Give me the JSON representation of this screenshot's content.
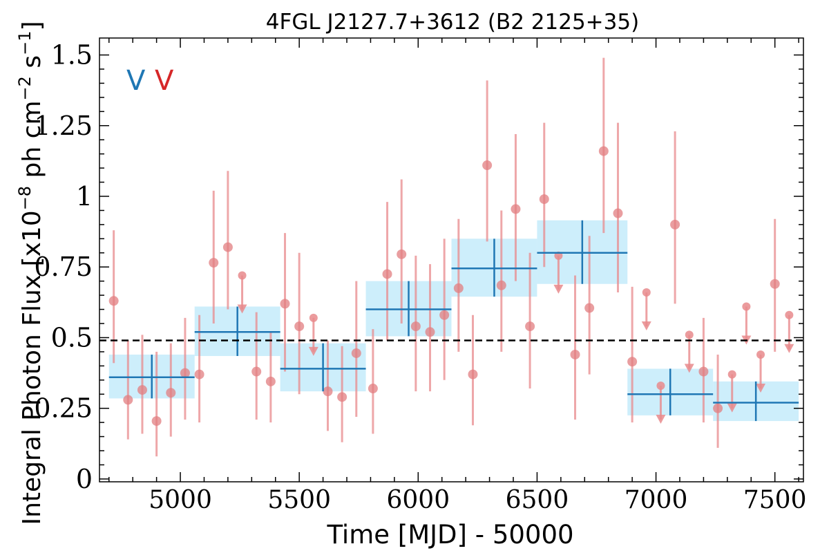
{
  "chart_data": {
    "type": "scatter",
    "title": "4FGL J2127.7+3612 (B2 2125+35)",
    "xlabel": "Time [MJD] - 50000",
    "ylabel": "Integral Photon Flux [x10$^{-8}$ ph cm$^{-2}$ s$^{-1}$]",
    "ylabel_parts": {
      "pre": "Integral Photon Flux [x10",
      "exp1": "−8",
      "mid": " ph cm",
      "exp2": "−2",
      "post1": " s",
      "exp3": "−1",
      "post2": "]"
    },
    "xlim": [
      4660,
      7620
    ],
    "ylim": [
      -0.01,
      1.56
    ],
    "xticks": [
      5000,
      5500,
      6000,
      6500,
      7000,
      7500
    ],
    "xtick_labels": [
      "5000",
      "5500",
      "6000",
      "6500",
      "7000",
      "7500"
    ],
    "yticks": [
      0,
      0.25,
      0.5,
      0.75,
      1,
      1.25,
      1.5
    ],
    "ytick_labels": [
      "0",
      "0.25",
      "0.5",
      "0.75",
      "1",
      "1.25",
      "1.5"
    ],
    "legend_labels": [
      {
        "text": "V",
        "color": "#1f77b4"
      },
      {
        "text": "V",
        "color": "#d62728"
      }
    ],
    "mean_flux": 0.49,
    "colors": {
      "short_points": "#e8898c",
      "long_bins": "#1f77b4",
      "long_band": "#cdeefb"
    },
    "series": [
      {
        "name": "",
        "type": "points_with_errorbars",
        "points": [
          {
            "x": 4720,
            "y": 0.63,
            "lo": 0.41,
            "hi": 0.88
          },
          {
            "x": 4780,
            "y": 0.28,
            "lo": 0.14,
            "hi": 0.49
          },
          {
            "x": 4840,
            "y": 0.315,
            "lo": 0.16,
            "hi": 0.51
          },
          {
            "x": 4900,
            "y": 0.205,
            "lo": 0.08,
            "hi": 0.45
          },
          {
            "x": 4960,
            "y": 0.305,
            "lo": 0.15,
            "hi": 0.48
          },
          {
            "x": 5020,
            "y": 0.375,
            "lo": 0.21,
            "hi": 0.57
          },
          {
            "x": 5080,
            "y": 0.37,
            "lo": 0.2,
            "hi": 0.58
          },
          {
            "x": 5140,
            "y": 0.765,
            "lo": 0.55,
            "hi": 1.02
          },
          {
            "x": 5200,
            "y": 0.82,
            "lo": 0.6,
            "hi": 1.09
          },
          {
            "x": 5320,
            "y": 0.38,
            "lo": 0.21,
            "hi": 0.59
          },
          {
            "x": 5380,
            "y": 0.345,
            "lo": 0.2,
            "hi": 0.52
          },
          {
            "x": 5440,
            "y": 0.62,
            "lo": 0.38,
            "hi": 0.87
          },
          {
            "x": 5500,
            "y": 0.54,
            "lo": 0.3,
            "hi": 0.8
          },
          {
            "x": 5620,
            "y": 0.31,
            "lo": 0.17,
            "hi": 0.49
          },
          {
            "x": 5680,
            "y": 0.29,
            "lo": 0.13,
            "hi": 0.47
          },
          {
            "x": 5740,
            "y": 0.445,
            "lo": 0.22,
            "hi": 0.7
          },
          {
            "x": 5810,
            "y": 0.32,
            "lo": 0.16,
            "hi": 0.53
          },
          {
            "x": 5870,
            "y": 0.725,
            "lo": 0.49,
            "hi": 0.98
          },
          {
            "x": 5930,
            "y": 0.795,
            "lo": 0.55,
            "hi": 1.06
          },
          {
            "x": 5990,
            "y": 0.54,
            "lo": 0.31,
            "hi": 0.79
          },
          {
            "x": 6050,
            "y": 0.52,
            "lo": 0.31,
            "hi": 0.76
          },
          {
            "x": 6110,
            "y": 0.58,
            "lo": 0.35,
            "hi": 0.85
          },
          {
            "x": 6170,
            "y": 0.675,
            "lo": 0.45,
            "hi": 0.92
          },
          {
            "x": 6230,
            "y": 0.37,
            "lo": 0.19,
            "hi": 0.58
          },
          {
            "x": 6290,
            "y": 1.11,
            "lo": 0.84,
            "hi": 1.41
          },
          {
            "x": 6350,
            "y": 0.685,
            "lo": 0.45,
            "hi": 0.95
          },
          {
            "x": 6410,
            "y": 0.955,
            "lo": 0.7,
            "hi": 1.22
          },
          {
            "x": 6470,
            "y": 0.54,
            "lo": 0.32,
            "hi": 0.8
          },
          {
            "x": 6530,
            "y": 0.99,
            "lo": 0.75,
            "hi": 1.26
          },
          {
            "x": 6660,
            "y": 0.44,
            "lo": 0.21,
            "hi": 0.72
          },
          {
            "x": 6720,
            "y": 0.605,
            "lo": 0.37,
            "hi": 0.86
          },
          {
            "x": 6780,
            "y": 1.16,
            "lo": 0.87,
            "hi": 1.49
          },
          {
            "x": 6840,
            "y": 0.94,
            "lo": 0.66,
            "hi": 1.26
          },
          {
            "x": 6900,
            "y": 0.415,
            "lo": 0.2,
            "hi": 0.68
          },
          {
            "x": 7080,
            "y": 0.9,
            "lo": 0.62,
            "hi": 1.23
          },
          {
            "x": 7200,
            "y": 0.38,
            "lo": 0.2,
            "hi": 0.57
          },
          {
            "x": 7260,
            "y": 0.25,
            "lo": 0.11,
            "hi": 0.44
          },
          {
            "x": 7500,
            "y": 0.69,
            "lo": 0.45,
            "hi": 0.92
          }
        ]
      },
      {
        "name": "",
        "type": "upper_limits",
        "points": [
          {
            "x": 5260,
            "y": 0.72
          },
          {
            "x": 5560,
            "y": 0.57
          },
          {
            "x": 6590,
            "y": 0.79
          },
          {
            "x": 6960,
            "y": 0.66
          },
          {
            "x": 7020,
            "y": 0.33
          },
          {
            "x": 7140,
            "y": 0.51
          },
          {
            "x": 7320,
            "y": 0.37
          },
          {
            "x": 7380,
            "y": 0.61
          },
          {
            "x": 7440,
            "y": 0.44
          },
          {
            "x": 7560,
            "y": 0.58
          }
        ]
      },
      {
        "name": "",
        "type": "binned",
        "bins": [
          {
            "x0": 4700,
            "x1": 5060,
            "xc": 4880,
            "y": 0.36,
            "lo": 0.285,
            "hi": 0.44
          },
          {
            "x0": 5060,
            "x1": 5420,
            "xc": 5240,
            "y": 0.52,
            "lo": 0.435,
            "hi": 0.61
          },
          {
            "x0": 5420,
            "x1": 5780,
            "xc": 5600,
            "y": 0.39,
            "lo": 0.31,
            "hi": 0.48
          },
          {
            "x0": 5780,
            "x1": 6140,
            "xc": 5960,
            "y": 0.6,
            "lo": 0.505,
            "hi": 0.7
          },
          {
            "x0": 6140,
            "x1": 6500,
            "xc": 6320,
            "y": 0.745,
            "lo": 0.645,
            "hi": 0.85
          },
          {
            "x0": 6500,
            "x1": 6880,
            "xc": 6690,
            "y": 0.8,
            "lo": 0.69,
            "hi": 0.915
          },
          {
            "x0": 6880,
            "x1": 7240,
            "xc": 7060,
            "y": 0.3,
            "lo": 0.225,
            "hi": 0.39
          },
          {
            "x0": 7240,
            "x1": 7600,
            "xc": 7420,
            "y": 0.27,
            "lo": 0.205,
            "hi": 0.345
          }
        ]
      }
    ]
  }
}
